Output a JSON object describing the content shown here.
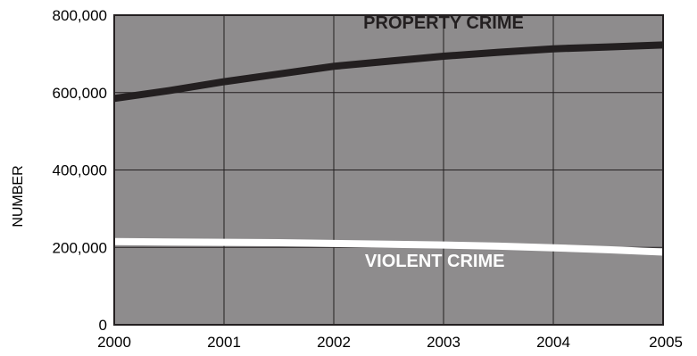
{
  "chart_data": {
    "type": "line",
    "title": "",
    "xlabel": "",
    "ylabel": "NUMBER",
    "xlim": [
      2000,
      2005
    ],
    "ylim": [
      0,
      800000
    ],
    "x": [
      2000,
      2001,
      2002,
      2003,
      2004,
      2005
    ],
    "x_tick_labels": [
      "2000",
      "2001",
      "2002",
      "2003",
      "2004",
      "2005"
    ],
    "y_ticks": [
      0,
      200000,
      400000,
      600000,
      800000
    ],
    "y_tick_labels": [
      "0",
      "200,000",
      "400,000",
      "600,000",
      "800,000"
    ],
    "grid": true,
    "series": [
      {
        "name": "PROPERTY CRIME",
        "color": "#231f20",
        "label_anchor": [
          2003.0,
          765000
        ],
        "points": [
          [
            2000,
            585000
          ],
          [
            2000.5,
            605000
          ],
          [
            2001,
            628000
          ],
          [
            2001.5,
            648000
          ],
          [
            2002,
            668000
          ],
          [
            2002.5,
            681000
          ],
          [
            2003,
            694000
          ],
          [
            2003.5,
            704000
          ],
          [
            2004,
            713000
          ],
          [
            2004.5,
            718000
          ],
          [
            2005,
            723000
          ]
        ]
      },
      {
        "name": "VIOLENT CRIME",
        "color": "#ffffff",
        "label_anchor": [
          2002.92,
          150000
        ],
        "points": [
          [
            2000,
            215000
          ],
          [
            2000.5,
            214000
          ],
          [
            2001,
            213000
          ],
          [
            2001.5,
            212000
          ],
          [
            2002,
            210000
          ],
          [
            2002.5,
            208000
          ],
          [
            2003,
            206000
          ],
          [
            2003.5,
            203000
          ],
          [
            2004,
            199000
          ],
          [
            2004.5,
            194000
          ],
          [
            2005,
            188000
          ]
        ]
      }
    ],
    "colors": {
      "plot_background": "#8e8c8d",
      "grid": "#231f20",
      "border": "#231f20"
    }
  }
}
